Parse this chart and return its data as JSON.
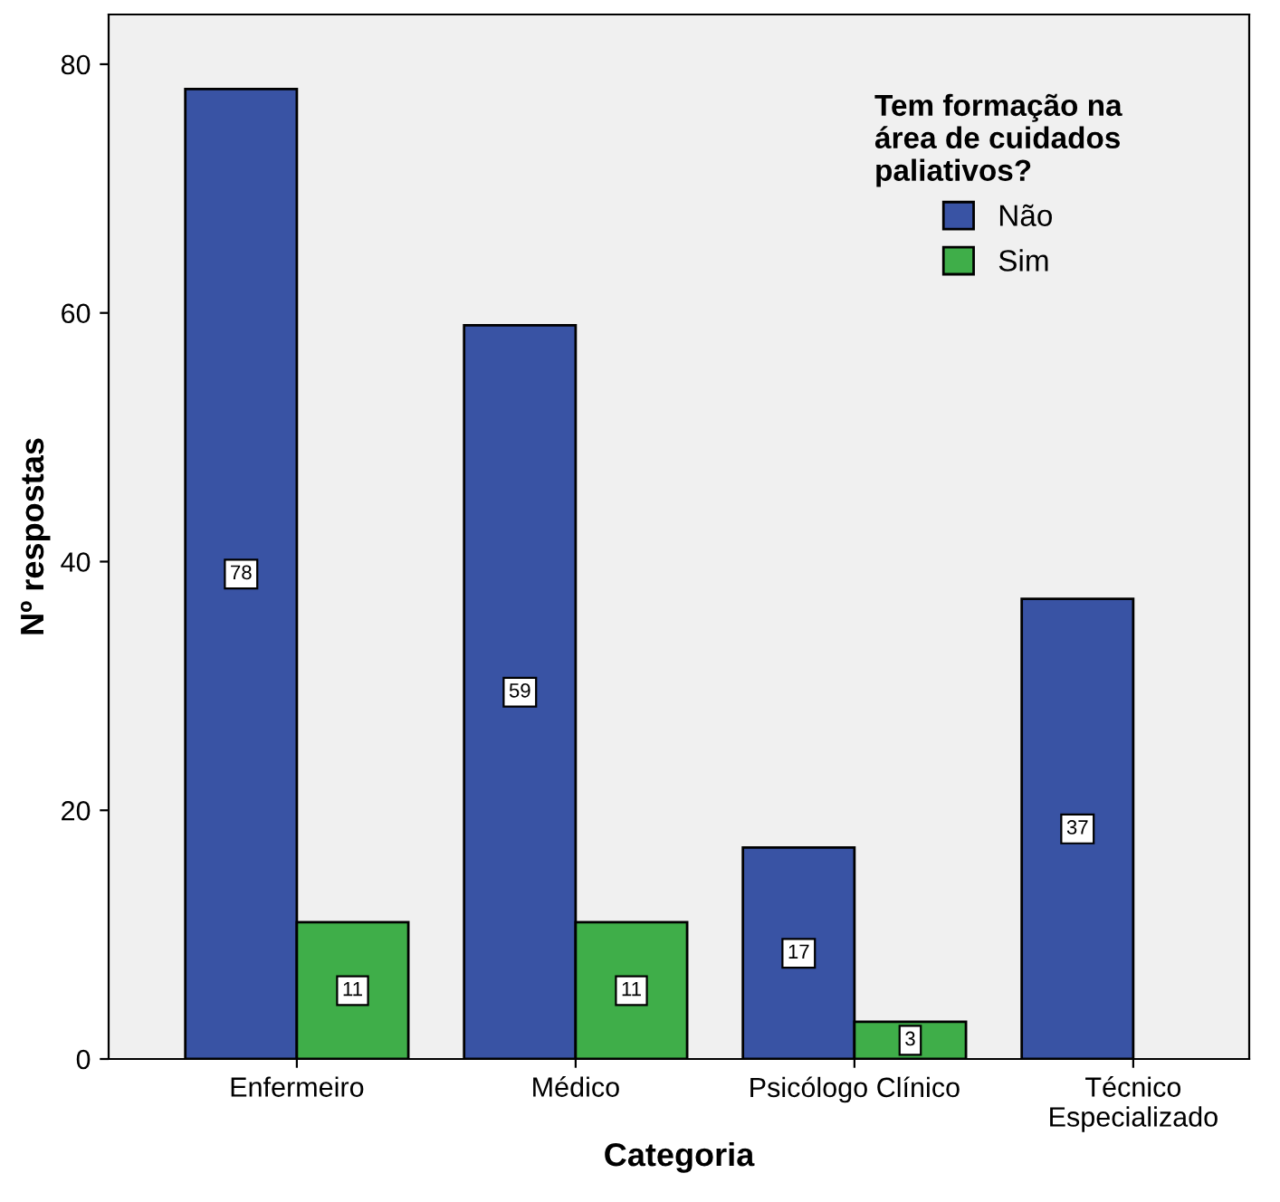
{
  "chart_data": {
    "type": "bar",
    "xlabel": "Categoria",
    "ylabel": "Nº respostas",
    "legend_title": "Tem formação na\nárea de cuidados\npaliativos?",
    "categories": [
      "Enfermeiro",
      "Médico",
      "Psicólogo Clínico",
      "Técnico\nEspecializado"
    ],
    "series": [
      {
        "name": "Não",
        "color": "#3953a4",
        "values": [
          78,
          59,
          17,
          37
        ]
      },
      {
        "name": "Sim",
        "color": "#3fae49",
        "values": [
          11,
          11,
          3,
          null
        ]
      }
    ],
    "ylim": [
      0,
      84
    ],
    "yticks": [
      0,
      20,
      40,
      60,
      80
    ],
    "grid": false,
    "legend": "top right",
    "data_labels": true
  }
}
